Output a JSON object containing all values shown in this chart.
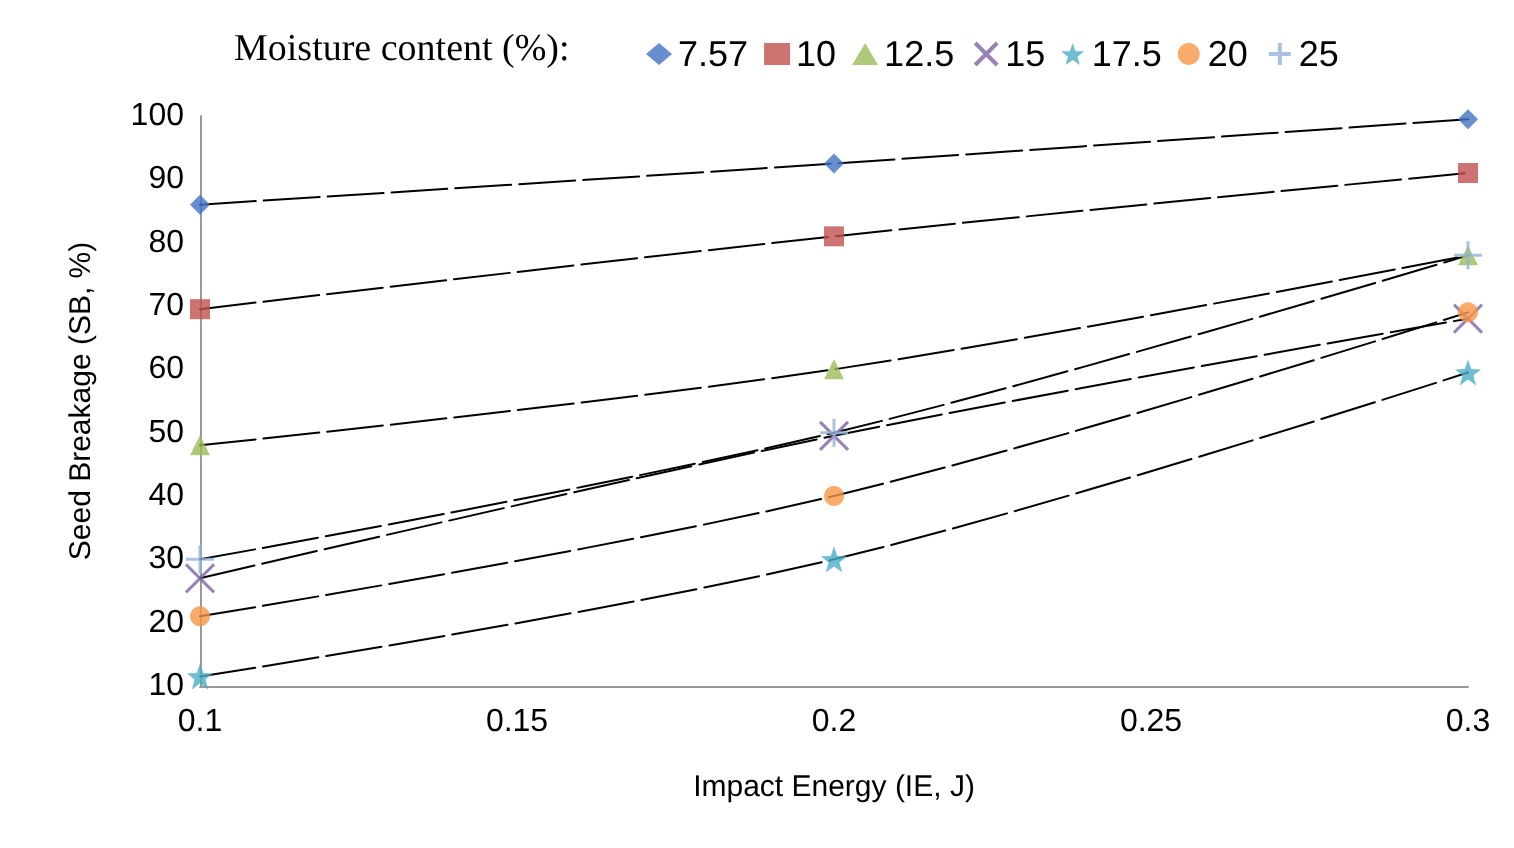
{
  "chart_data": {
    "type": "scatter",
    "legend_title": "Moisture content (%):",
    "xlabel": "Impact Energy (IE, J)",
    "ylabel": "Seed Breakage (SB, %)",
    "x": [
      0.1,
      0.2,
      0.3
    ],
    "series": [
      {
        "name": "7.57",
        "color": "#4472c4",
        "marker": "diamond",
        "values": [
          86,
          92.5,
          99.5
        ]
      },
      {
        "name": "10",
        "color": "#c0504d",
        "marker": "square",
        "values": [
          69.5,
          81,
          91
        ]
      },
      {
        "name": "12.5",
        "color": "#9bbb59",
        "marker": "triangle",
        "values": [
          48,
          60,
          78
        ]
      },
      {
        "name": "15",
        "color": "#8064a2",
        "marker": "cross",
        "values": [
          27,
          49.5,
          68
        ]
      },
      {
        "name": "17.5",
        "color": "#4bacc6",
        "marker": "star",
        "values": [
          11.5,
          30,
          59.5
        ]
      },
      {
        "name": "20",
        "color": "#f79646",
        "marker": "circle",
        "values": [
          21,
          40,
          69
        ]
      },
      {
        "name": "25",
        "color": "#95b3d7",
        "marker": "plus",
        "values": [
          30,
          50,
          78
        ]
      },
      {
        "type": "line",
        "color": "#000000",
        "marker": "none",
        "line_style": "dashed",
        "values": [
          86,
          92.5,
          99.5
        ]
      },
      {
        "type": "line",
        "color": "#000000",
        "marker": "none",
        "line_style": "dashed",
        "values": [
          69.5,
          81,
          91
        ]
      },
      {
        "type": "line",
        "color": "#000000",
        "marker": "none",
        "line_style": "dashed",
        "values": [
          48,
          60,
          78
        ]
      },
      {
        "type": "line",
        "color": "#000000",
        "marker": "none",
        "line_style": "dashed",
        "values": [
          27,
          49.5,
          68
        ]
      },
      {
        "type": "line",
        "color": "#000000",
        "marker": "none",
        "line_style": "dashed",
        "values": [
          11.5,
          30,
          59.5
        ]
      },
      {
        "type": "line",
        "color": "#000000",
        "marker": "none",
        "line_style": "dashed",
        "values": [
          21,
          40,
          69
        ]
      },
      {
        "type": "line",
        "color": "#000000",
        "marker": "none",
        "line_style": "dashed",
        "values": [
          30,
          50,
          78
        ]
      }
    ],
    "xlim": [
      0.1,
      0.3
    ],
    "xticks": [
      0.1,
      0.15,
      0.2,
      0.25,
      0.3
    ],
    "ylim": [
      10,
      100
    ],
    "yticks": [
      10,
      20,
      30,
      40,
      50,
      60,
      70,
      80,
      90,
      100
    ],
    "grid": false,
    "legend": "top"
  }
}
